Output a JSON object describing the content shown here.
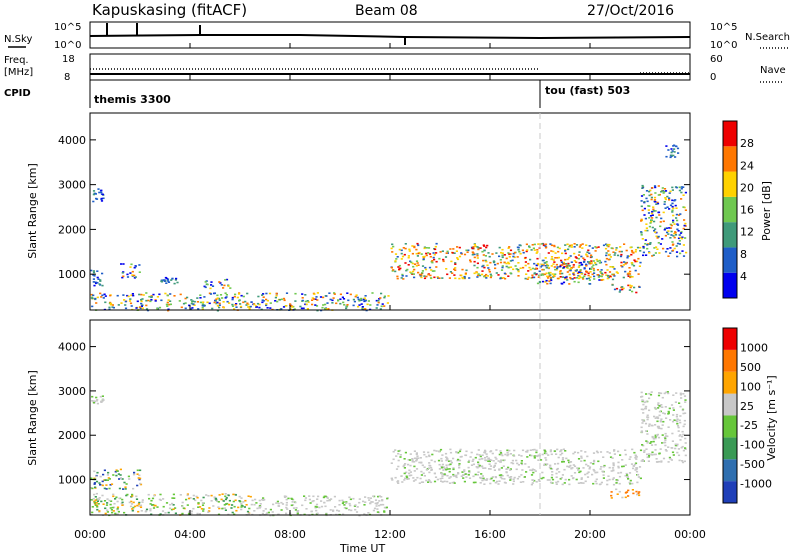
{
  "header": {
    "station": "Kapuskasing (fitACF)",
    "beam": "Beam 08",
    "date": "27/Oct/2016"
  },
  "top_panels": {
    "nsky_label": "N.Sky",
    "nsky_ticks": [
      "10^5",
      "10^0"
    ],
    "nsearch_label": "N.Search",
    "nsearch_ticks": [
      "10^5",
      "10^0"
    ],
    "freq_label_1": "Freq.",
    "freq_label_2": "[MHz]",
    "freq_ticks": [
      "18",
      "8"
    ],
    "nave_label": "Nave",
    "nave_ticks": [
      "60",
      "0"
    ],
    "cpid_label": "CPID",
    "cpid_modes": [
      "themis 3300",
      "tou (fast) 503"
    ]
  },
  "x_axis": {
    "label": "Time UT",
    "ticks": [
      "00:00",
      "04:00",
      "08:00",
      "12:00",
      "16:00",
      "20:00",
      "00:00"
    ]
  },
  "chart_data": [
    {
      "type": "heatmap",
      "panel": "power",
      "ylabel": "Slant Range [km]",
      "yticks": [
        "4000",
        "3000",
        "2000",
        "1000"
      ],
      "ylim": [
        200,
        4600
      ],
      "xlim_hours": [
        0,
        24
      ],
      "colorbar": {
        "label": "Power [dB]",
        "ticks": [
          "28",
          "24",
          "20",
          "16",
          "12",
          "8",
          "4"
        ],
        "colors": [
          "#0000ee",
          "#1f5ec8",
          "#3f9a7a",
          "#6fc850",
          "#ffd200",
          "#ff7700",
          "#ee0000"
        ]
      },
      "regions": [
        {
          "t": [
            0.0,
            0.5
          ],
          "r": [
            2600,
            2950
          ],
          "level": "low"
        },
        {
          "t": [
            0.0,
            6.4
          ],
          "r": [
            200,
            600
          ],
          "level": "mixed"
        },
        {
          "t": [
            0.0,
            0.5
          ],
          "r": [
            700,
            1100
          ],
          "level": "low"
        },
        {
          "t": [
            1.2,
            2.0
          ],
          "r": [
            900,
            1250
          ],
          "level": "mixed"
        },
        {
          "t": [
            2.8,
            3.5
          ],
          "r": [
            800,
            950
          ],
          "level": "low"
        },
        {
          "t": [
            4.5,
            5.6
          ],
          "r": [
            700,
            900
          ],
          "level": "mixed"
        },
        {
          "t": [
            6.4,
            11.9
          ],
          "r": [
            200,
            600
          ],
          "level": "mixed"
        },
        {
          "t": [
            12.0,
            22.0
          ],
          "r": [
            900,
            1700
          ],
          "level": "high"
        },
        {
          "t": [
            17.6,
            20.5
          ],
          "r": [
            800,
            1300
          ],
          "level": "mixed"
        },
        {
          "t": [
            20.8,
            22.0
          ],
          "r": [
            600,
            800
          ],
          "level": "high"
        },
        {
          "t": [
            22.0,
            23.8
          ],
          "r": [
            1400,
            3000
          ],
          "level": "mixed"
        },
        {
          "t": [
            23.0,
            23.5
          ],
          "r": [
            3600,
            3900
          ],
          "level": "low"
        }
      ]
    },
    {
      "type": "heatmap",
      "panel": "velocity",
      "ylabel": "Slant Range [km]",
      "yticks": [
        "4000",
        "3000",
        "2000",
        "1000"
      ],
      "ylim": [
        200,
        4600
      ],
      "xlim_hours": [
        0,
        24
      ],
      "colorbar": {
        "label": "Velocity [m s⁻¹]",
        "ticks": [
          "1000",
          "500",
          "100",
          "25",
          "-25",
          "-100",
          "-500",
          "-1000"
        ],
        "colors": [
          "#1f3fb8",
          "#2f6fb0",
          "#3a9a55",
          "#66c63a",
          "#c8c8c8",
          "#ffa500",
          "#ff7700",
          "#ee0000"
        ]
      },
      "regions": [
        {
          "t": [
            0.0,
            0.5
          ],
          "r": [
            2700,
            2900
          ],
          "level": "ground"
        },
        {
          "t": [
            0.0,
            6.4
          ],
          "r": [
            200,
            700
          ],
          "level": "positive"
        },
        {
          "t": [
            0.0,
            2.0
          ],
          "r": [
            800,
            1250
          ],
          "level": "mixed"
        },
        {
          "t": [
            6.4,
            11.9
          ],
          "r": [
            200,
            650
          ],
          "level": "ground"
        },
        {
          "t": [
            12.0,
            22.0
          ],
          "r": [
            900,
            1700
          ],
          "level": "ground"
        },
        {
          "t": [
            20.8,
            22.0
          ],
          "r": [
            600,
            800
          ],
          "level": "negative"
        },
        {
          "t": [
            22.0,
            23.8
          ],
          "r": [
            1400,
            3000
          ],
          "level": "ground"
        }
      ]
    }
  ]
}
